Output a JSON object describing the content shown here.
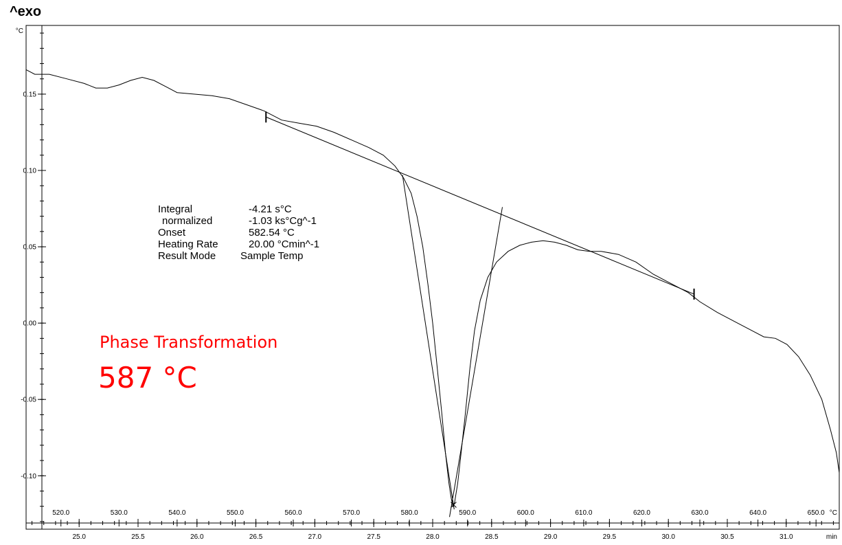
{
  "header": {
    "exo_label": "^exo"
  },
  "chart_data": {
    "type": "line",
    "title": "",
    "y_unit_label": "°C",
    "x_unit_label_time": "min",
    "x_unit_label_temp": "°C",
    "ylim": [
      -0.135,
      0.195
    ],
    "xlim_time": [
      24.55,
      31.45
    ],
    "xlim_temp": [
      514.0,
      654.0
    ],
    "y_ticks": [
      0.15,
      0.1,
      0.05,
      0.0,
      -0.05,
      -0.1
    ],
    "y_tick_labels": [
      "0.15",
      "0.10",
      "0.05",
      "0.00",
      "-0.05",
      "-0.10"
    ],
    "x_time_ticks": [
      25.0,
      25.5,
      26.0,
      26.5,
      27.0,
      27.5,
      28.0,
      28.5,
      29.0,
      29.5,
      30.0,
      30.5,
      31.0
    ],
    "x_time_tick_labels": [
      "25.0",
      "25.5",
      "26.0",
      "26.5",
      "27.0",
      "27.5",
      "28.0",
      "28.5",
      "29.0",
      "29.5",
      "30.0",
      "30.5",
      "31.0"
    ],
    "x_temp_ticks": [
      520,
      530,
      540,
      550,
      560,
      570,
      580,
      590,
      600,
      610,
      620,
      630,
      640,
      650
    ],
    "x_temp_tick_labels": [
      "520.0",
      "530.0",
      "540.0",
      "550.0",
      "560.0",
      "570.0",
      "580.0",
      "590.0",
      "600.0",
      "610.0",
      "620.0",
      "630.0",
      "640.0",
      "650.0"
    ],
    "series": [
      {
        "points": [
          [
            514.0,
            0.166
          ],
          [
            515.5,
            0.163
          ],
          [
            518.0,
            0.163
          ],
          [
            521.0,
            0.16
          ],
          [
            524.0,
            0.157
          ],
          [
            526.0,
            0.154
          ],
          [
            528.0,
            0.154
          ],
          [
            530.0,
            0.156
          ],
          [
            532.0,
            0.159
          ],
          [
            534.0,
            0.161
          ],
          [
            536.0,
            0.159
          ],
          [
            538.0,
            0.155
          ],
          [
            540.0,
            0.151
          ],
          [
            543.0,
            0.15
          ],
          [
            546.0,
            0.149
          ],
          [
            549.0,
            0.147
          ],
          [
            552.0,
            0.143
          ],
          [
            555.0,
            0.139
          ],
          [
            558.0,
            0.133
          ],
          [
            561.0,
            0.131
          ],
          [
            564.0,
            0.129
          ],
          [
            567.0,
            0.125
          ],
          [
            570.0,
            0.12
          ],
          [
            573.0,
            0.115
          ],
          [
            575.5,
            0.11
          ],
          [
            577.5,
            0.103
          ],
          [
            579.0,
            0.095
          ],
          [
            580.3,
            0.085
          ],
          [
            581.3,
            0.07
          ],
          [
            582.3,
            0.05
          ],
          [
            583.2,
            0.025
          ],
          [
            584.0,
            0.0
          ],
          [
            584.8,
            -0.03
          ],
          [
            585.6,
            -0.06
          ],
          [
            586.2,
            -0.085
          ],
          [
            586.8,
            -0.105
          ],
          [
            587.2,
            -0.115
          ],
          [
            587.5,
            -0.12
          ],
          [
            587.8,
            -0.117
          ],
          [
            588.3,
            -0.105
          ],
          [
            588.9,
            -0.085
          ],
          [
            589.6,
            -0.06
          ],
          [
            590.4,
            -0.03
          ],
          [
            591.2,
            -0.005
          ],
          [
            592.2,
            0.015
          ],
          [
            593.5,
            0.03
          ],
          [
            595.0,
            0.04
          ],
          [
            597.0,
            0.047
          ],
          [
            599.0,
            0.051
          ],
          [
            601.0,
            0.053
          ],
          [
            603.0,
            0.054
          ],
          [
            605.0,
            0.053
          ],
          [
            607.0,
            0.051
          ],
          [
            609.0,
            0.048
          ],
          [
            611.0,
            0.047
          ],
          [
            613.0,
            0.047
          ],
          [
            616.0,
            0.045
          ],
          [
            619.0,
            0.04
          ],
          [
            622.0,
            0.032
          ],
          [
            625.0,
            0.026
          ],
          [
            628.0,
            0.02
          ],
          [
            630.0,
            0.014
          ],
          [
            633.0,
            0.007
          ],
          [
            636.0,
            0.001
          ],
          [
            639.0,
            -0.005
          ],
          [
            641.0,
            -0.009
          ],
          [
            643.0,
            -0.01
          ],
          [
            645.0,
            -0.014
          ],
          [
            647.0,
            -0.022
          ],
          [
            649.0,
            -0.034
          ],
          [
            651.0,
            -0.05
          ],
          [
            652.5,
            -0.07
          ],
          [
            653.5,
            -0.085
          ],
          [
            654.0,
            -0.098
          ]
        ]
      }
    ],
    "baseline": [
      [
        555.3,
        0.135
      ],
      [
        629.0,
        0.019
      ]
    ],
    "tangent_left": [
      [
        578.8,
        0.097
      ],
      [
        587.7,
        -0.122
      ]
    ],
    "tangent_right": [
      [
        586.9,
        -0.127
      ],
      [
        596.0,
        0.076
      ]
    ],
    "markers": [
      [
        555.3,
        0.135
      ],
      [
        629.0,
        0.019
      ]
    ],
    "peak_point": [
      587.6,
      -0.119
    ]
  },
  "results": {
    "rows": [
      {
        "label": "Integral",
        "value": "-4.21 s°C"
      },
      {
        "label": "normalized",
        "value": "-1.03 ks°Cg^-1"
      },
      {
        "label": "Onset",
        "value": "582.54 °C"
      },
      {
        "label": "Heating Rate",
        "value": "20.00 °Cmin^-1"
      },
      {
        "label": "Result Mode",
        "value": "Sample Temp"
      }
    ]
  },
  "annotation": {
    "phase_label": "Phase Transformation",
    "phase_temp": "587 °C",
    "color": "#ff0000"
  }
}
